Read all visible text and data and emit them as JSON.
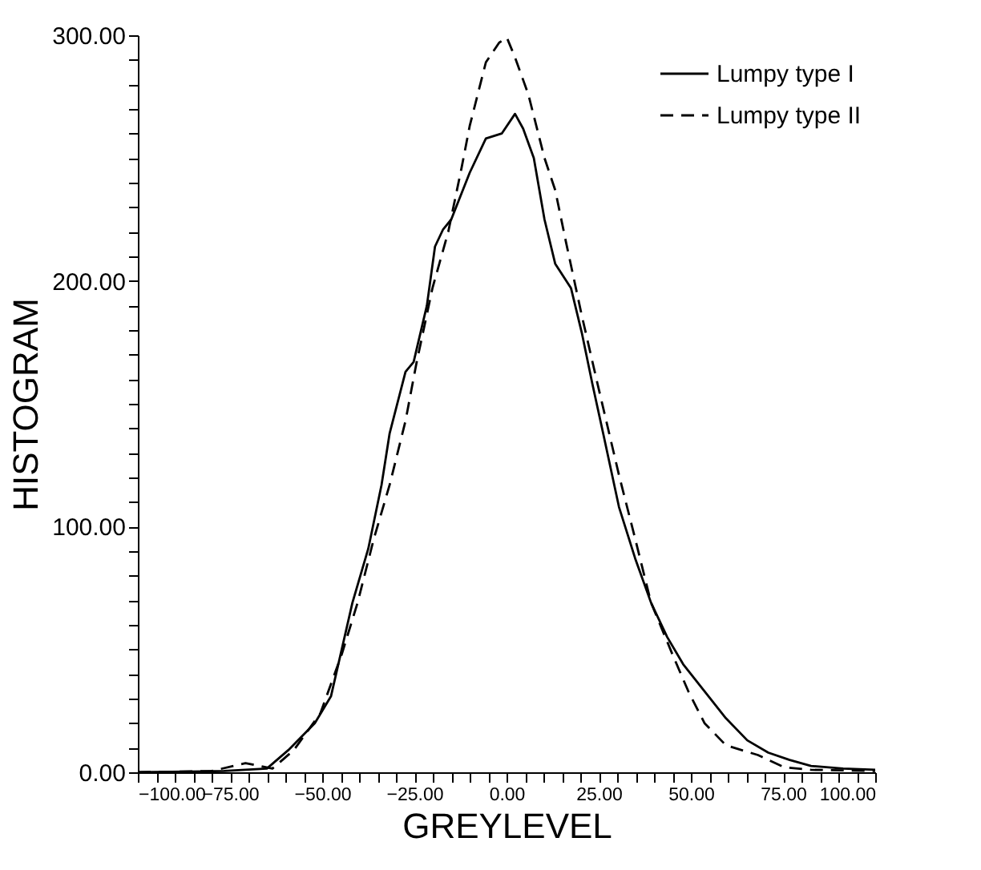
{
  "chart_data": {
    "type": "line",
    "xlabel": "GREYLEVEL",
    "ylabel": "HISTOGRAM",
    "xlim": [
      -100,
      100
    ],
    "ylim": [
      0,
      300
    ],
    "xticks": [
      {
        "value": -100,
        "label": "−100.00"
      },
      {
        "value": -95,
        "label": null
      },
      {
        "value": -90,
        "label": null
      },
      {
        "value": -85,
        "label": null
      },
      {
        "value": -80,
        "label": null
      },
      {
        "value": -75,
        "label": "−75.00"
      },
      {
        "value": -70,
        "label": null
      },
      {
        "value": -65,
        "label": null
      },
      {
        "value": -60,
        "label": null
      },
      {
        "value": -55,
        "label": null
      },
      {
        "value": -50,
        "label": "−50.00"
      },
      {
        "value": -45,
        "label": null
      },
      {
        "value": -40,
        "label": null
      },
      {
        "value": -35,
        "label": null
      },
      {
        "value": -30,
        "label": null
      },
      {
        "value": -25,
        "label": "−25.00"
      },
      {
        "value": -20,
        "label": null
      },
      {
        "value": -15,
        "label": null
      },
      {
        "value": -10,
        "label": null
      },
      {
        "value": -5,
        "label": null
      },
      {
        "value": 0,
        "label": "0.00"
      },
      {
        "value": 5,
        "label": null
      },
      {
        "value": 10,
        "label": null
      },
      {
        "value": 15,
        "label": null
      },
      {
        "value": 20,
        "label": null
      },
      {
        "value": 25,
        "label": "25.00"
      },
      {
        "value": 30,
        "label": null
      },
      {
        "value": 35,
        "label": null
      },
      {
        "value": 40,
        "label": null
      },
      {
        "value": 45,
        "label": null
      },
      {
        "value": 50,
        "label": "50.00"
      },
      {
        "value": 55,
        "label": null
      },
      {
        "value": 60,
        "label": null
      },
      {
        "value": 65,
        "label": null
      },
      {
        "value": 70,
        "label": null
      },
      {
        "value": 75,
        "label": "75.00"
      },
      {
        "value": 80,
        "label": null
      },
      {
        "value": 85,
        "label": null
      },
      {
        "value": 90,
        "label": null
      },
      {
        "value": 95,
        "label": null
      },
      {
        "value": 100,
        "label": "100.00"
      }
    ],
    "yticks": [
      {
        "value": 0,
        "label": "0.00"
      },
      {
        "value": 10,
        "label": null
      },
      {
        "value": 20,
        "label": null
      },
      {
        "value": 30,
        "label": null
      },
      {
        "value": 40,
        "label": null
      },
      {
        "value": 50,
        "label": null
      },
      {
        "value": 60,
        "label": null
      },
      {
        "value": 70,
        "label": null
      },
      {
        "value": 80,
        "label": null
      },
      {
        "value": 90,
        "label": null
      },
      {
        "value": 100,
        "label": "100.00"
      },
      {
        "value": 110,
        "label": null
      },
      {
        "value": 120,
        "label": null
      },
      {
        "value": 130,
        "label": null
      },
      {
        "value": 140,
        "label": null
      },
      {
        "value": 150,
        "label": null
      },
      {
        "value": 160,
        "label": null
      },
      {
        "value": 170,
        "label": null
      },
      {
        "value": 180,
        "label": null
      },
      {
        "value": 190,
        "label": null
      },
      {
        "value": 200,
        "label": "200.00"
      },
      {
        "value": 210,
        "label": null
      },
      {
        "value": 220,
        "label": null
      },
      {
        "value": 230,
        "label": null
      },
      {
        "value": 240,
        "label": null
      },
      {
        "value": 250,
        "label": null
      },
      {
        "value": 260,
        "label": null
      },
      {
        "value": 270,
        "label": null
      },
      {
        "value": 280,
        "label": null
      },
      {
        "value": 290,
        "label": null
      },
      {
        "value": 300,
        "label": "300.00"
      }
    ],
    "legend": "top right",
    "grid": false,
    "marker": "none",
    "series": [
      {
        "name": "Lumpy type I",
        "color": "#000000",
        "line_style": "solid",
        "x": [
          -100,
          -76.6,
          -65,
          -59.2,
          -52,
          -47.6,
          -41.8,
          -37.5,
          -33.9,
          -31.7,
          -27.4,
          -25.2,
          -21.6,
          -19.4,
          -17.2,
          -15,
          -12.9,
          -10,
          -5.6,
          -1.3,
          2.3,
          4.5,
          7.4,
          10.3,
          13.2,
          17.5,
          20.4,
          23.3,
          26.2,
          30.5,
          34.9,
          39.2,
          43.6,
          47.9,
          53.7,
          59.5,
          65.3,
          71,
          76.8,
          82.6,
          91.3,
          100
        ],
        "values": [
          0,
          0.5,
          1.5,
          9,
          20,
          31,
          69,
          91,
          117,
          138,
          163,
          167,
          190,
          214,
          221,
          225,
          233,
          244,
          258,
          260,
          268,
          262,
          250,
          225,
          207,
          197,
          179,
          158,
          138,
          108,
          87,
          69,
          55,
          44,
          33,
          22,
          13,
          8,
          5,
          2.6,
          1.5,
          1
        ]
      },
      {
        "name": "Lumpy type II",
        "color": "#000000",
        "line_style": "dashed",
        "x": [
          -100,
          -80,
          -70.8,
          -63.5,
          -57.7,
          -50.5,
          -44.7,
          -40.4,
          -36,
          -31.7,
          -27.4,
          -24.5,
          -20.1,
          -15.8,
          -12.2,
          -10,
          -5.6,
          -2,
          0.1,
          2.3,
          5.9,
          10.3,
          13.2,
          16.1,
          20.4,
          24.7,
          30.5,
          34.9,
          39.2,
          45,
          49.3,
          53.7,
          59.5,
          68.2,
          75.4,
          82.6,
          100
        ],
        "values": [
          0,
          0.5,
          3.7,
          1.5,
          9,
          24,
          48,
          69,
          95,
          117,
          143,
          166,
          197,
          220,
          246,
          263,
          289,
          297,
          299,
          291,
          276,
          250,
          237,
          216,
          186,
          158,
          121,
          95,
          69,
          48,
          33,
          20,
          11,
          7,
          2,
          1,
          0.5
        ]
      }
    ]
  }
}
